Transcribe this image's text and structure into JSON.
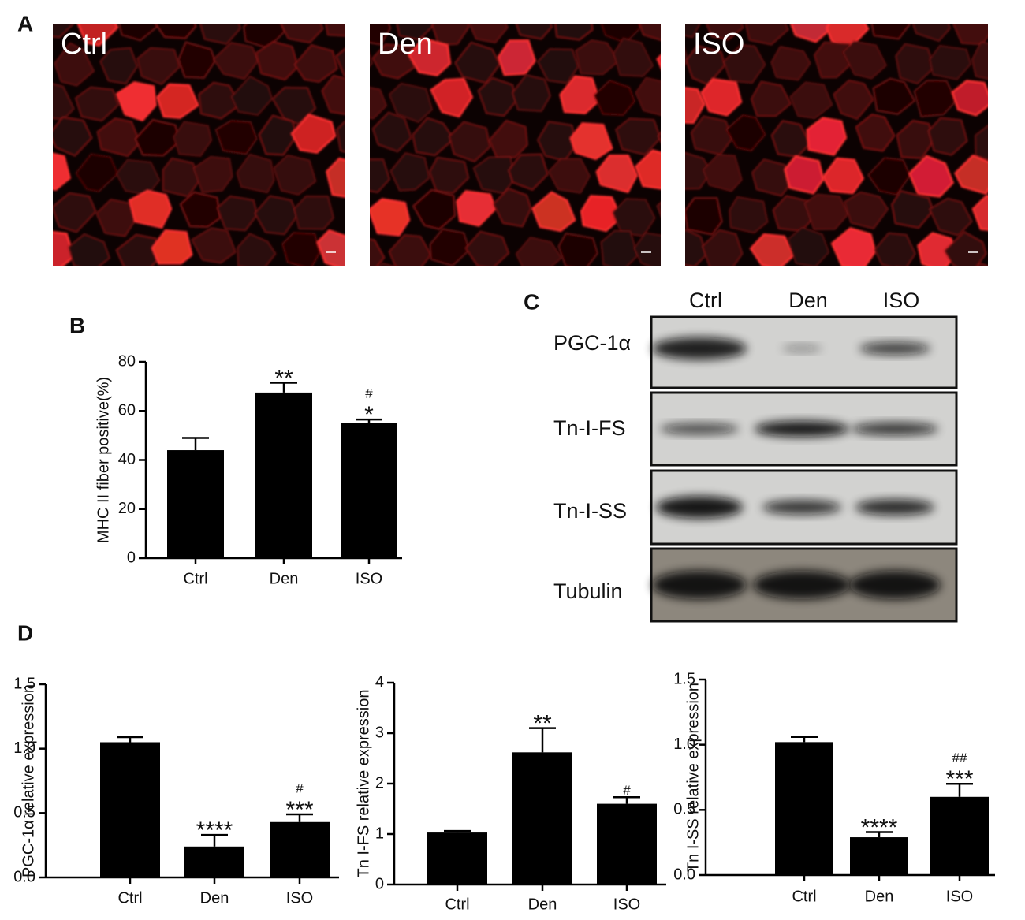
{
  "panel_labels": [
    "A",
    "B",
    "C",
    "D"
  ],
  "micrographs": [
    "Ctrl",
    "Den",
    "ISO"
  ],
  "blot": {
    "lanes": [
      "Ctrl",
      "Den",
      "ISO"
    ],
    "rows": [
      "PGC-1α",
      "Tn-I-FS",
      "Tn-I-SS",
      "Tubulin"
    ]
  },
  "chart_data": [
    {
      "type": "bar",
      "ylabel": "MHC II fiber positive(%)",
      "categories": [
        "Ctrl",
        "Den",
        "ISO"
      ],
      "values": [
        44,
        67.5,
        55
      ],
      "errors": [
        5,
        4,
        1.5
      ],
      "stars": [
        null,
        "**",
        "*"
      ],
      "hashes": [
        null,
        null,
        "#"
      ],
      "color": "#000000",
      "ylim": [
        0,
        80
      ],
      "yticks": [
        0,
        20,
        40,
        60,
        80
      ]
    },
    {
      "type": "bar",
      "ylabel": "PGC-1α relative expression",
      "categories": [
        "Ctrl",
        "Den",
        "ISO"
      ],
      "values": [
        1.05,
        0.24,
        0.43
      ],
      "errors": [
        0.04,
        0.09,
        0.06
      ],
      "stars": [
        null,
        "****",
        "***"
      ],
      "hashes": [
        null,
        null,
        "#"
      ],
      "color": "#000000",
      "ylim": [
        0,
        1.5
      ],
      "yticks": [
        {
          "value": 0,
          "label": "0.0"
        },
        0.5,
        {
          "value": 1,
          "label": "1.0"
        },
        1.5
      ]
    },
    {
      "type": "bar",
      "ylabel": "Tn I-FS relative expression",
      "categories": [
        "Ctrl",
        "Den",
        "ISO"
      ],
      "values": [
        1.03,
        2.62,
        1.6
      ],
      "errors": [
        0.03,
        0.48,
        0.13
      ],
      "stars": [
        null,
        "**",
        null
      ],
      "hashes": [
        null,
        null,
        "#"
      ],
      "color": "#000000",
      "ylim": [
        0,
        4
      ],
      "yticks": [
        0,
        1,
        2,
        3,
        4
      ]
    },
    {
      "type": "bar",
      "ylabel": "Tn I-SS relative expression",
      "categories": [
        "Ctrl",
        "Den",
        "ISO"
      ],
      "values": [
        1.02,
        0.29,
        0.6
      ],
      "errors": [
        0.04,
        0.04,
        0.1
      ],
      "stars": [
        null,
        "****",
        "***"
      ],
      "hashes": [
        null,
        null,
        "##"
      ],
      "color": "#000000",
      "ylim": [
        0,
        1.5
      ],
      "yticks": [
        {
          "value": 0,
          "label": "0.0"
        },
        0.5,
        {
          "value": 1,
          "label": "1.0"
        },
        1.5
      ]
    }
  ]
}
